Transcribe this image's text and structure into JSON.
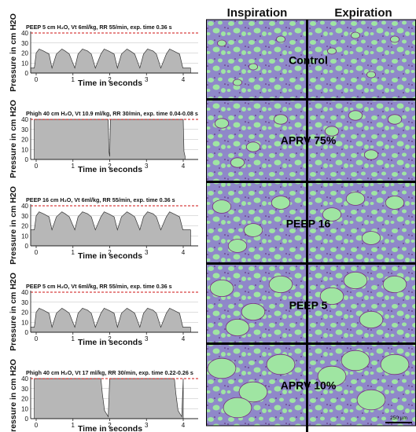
{
  "columns": {
    "inspiration": "Inspiration",
    "expiration": "Expiration"
  },
  "histology_rows": [
    {
      "label": "Control"
    },
    {
      "label": "APRV 75%"
    },
    {
      "label": "PEEP 16"
    },
    {
      "label": "PEEP 5"
    },
    {
      "label": "APRV 10%"
    }
  ],
  "scale_bar": "250 µm",
  "colors": {
    "waveform_fill": "#b7b7b7",
    "max_line": "#cc1111",
    "tissue_bg": "#8f88c9",
    "alveoli": "#9fe5a2",
    "septa": "#7a2b82",
    "divider": "#000000"
  },
  "chart_data": [
    {
      "type": "area",
      "title": "PEEP 5 cm H₂O, Vt 6ml/kg, RR 55/min, exp. time 0.36 s",
      "xlabel": "Time in seconds",
      "ylabel": "Pressure in cm H2O",
      "xlim": [
        0,
        4
      ],
      "ylim": [
        0,
        40
      ],
      "xticks": [
        0,
        1,
        2,
        3,
        4
      ],
      "yticks": [
        0,
        10,
        20,
        30,
        40
      ],
      "max_line": 40,
      "x": [
        -0.2,
        -0.05,
        0,
        0.08,
        0.2,
        0.35,
        0.43,
        0.55,
        0.7,
        0.79,
        0.9,
        1.05,
        1.14,
        1.26,
        1.4,
        1.5,
        1.61,
        1.76,
        1.85,
        1.97,
        2.12,
        2.21,
        2.32,
        2.47,
        2.56,
        2.68,
        2.82,
        2.92,
        3.03,
        3.18,
        3.27,
        3.39,
        3.54,
        3.63,
        3.74,
        3.9,
        3.99,
        4.2
      ],
      "values": [
        5,
        5,
        20,
        24,
        22,
        19,
        5,
        19,
        24,
        22,
        19,
        5,
        19,
        24,
        22,
        19,
        5,
        19,
        24,
        22,
        19,
        5,
        19,
        24,
        22,
        19,
        5,
        19,
        24,
        22,
        19,
        5,
        19,
        24,
        22,
        19,
        5,
        5
      ]
    },
    {
      "type": "area",
      "title": "Phigh 40 cm H₂O, Vt 10.9 ml/kg, RR 30/min, exp. time 0.04-0.08 s",
      "xlabel": "Time in seconds",
      "ylabel": "Pressure in cm H2O",
      "xlim": [
        0,
        4
      ],
      "ylim": [
        0,
        40
      ],
      "xticks": [
        0,
        1,
        2,
        3,
        4
      ],
      "yticks": [
        0,
        10,
        20,
        30,
        40
      ],
      "max_line": 40,
      "x": [
        -0.05,
        1.96,
        1.98,
        2.0,
        2.02,
        4.0,
        4.02,
        4.05
      ],
      "values": [
        40,
        40,
        8,
        3,
        40,
        40,
        8,
        3
      ]
    },
    {
      "type": "area",
      "title": "PEEP 16 cm H₂O, Vt 6ml/kg, RR 55/min, exp. time 0.36 s",
      "xlabel": "Time in seconds",
      "ylabel": "Pressure in cm H2O",
      "xlim": [
        0,
        4
      ],
      "ylim": [
        0,
        40
      ],
      "xticks": [
        0,
        1,
        2,
        3,
        4
      ],
      "yticks": [
        0,
        10,
        20,
        30,
        40
      ],
      "max_line": 40,
      "x": [
        -0.2,
        -0.05,
        0,
        0.08,
        0.2,
        0.35,
        0.43,
        0.55,
        0.7,
        0.79,
        0.9,
        1.05,
        1.14,
        1.26,
        1.4,
        1.5,
        1.61,
        1.76,
        1.85,
        1.97,
        2.12,
        2.21,
        2.32,
        2.47,
        2.56,
        2.68,
        2.82,
        2.92,
        3.03,
        3.18,
        3.27,
        3.39,
        3.54,
        3.63,
        3.74,
        3.9,
        3.99,
        4.2
      ],
      "values": [
        16,
        16,
        30,
        34,
        32,
        29,
        16,
        29,
        34,
        32,
        29,
        16,
        29,
        34,
        32,
        29,
        16,
        29,
        34,
        32,
        29,
        16,
        29,
        34,
        32,
        29,
        16,
        29,
        34,
        32,
        29,
        16,
        29,
        34,
        32,
        29,
        16,
        16
      ]
    },
    {
      "type": "area",
      "title": "PEEP 5 cm H₂O, Vt 6ml/kg, RR 55/min, exp. time 0.36 s",
      "xlabel": "Time in seconds",
      "ylabel": "Pressure in cm H2O",
      "xlim": [
        0,
        4
      ],
      "ylim": [
        0,
        40
      ],
      "xticks": [
        0,
        1,
        2,
        3,
        4
      ],
      "yticks": [
        0,
        10,
        20,
        30,
        40
      ],
      "max_line": 40,
      "x": [
        -0.2,
        -0.05,
        0,
        0.08,
        0.2,
        0.35,
        0.43,
        0.55,
        0.7,
        0.79,
        0.9,
        1.05,
        1.14,
        1.26,
        1.4,
        1.5,
        1.61,
        1.76,
        1.85,
        1.97,
        2.12,
        2.21,
        2.32,
        2.47,
        2.56,
        2.68,
        2.82,
        2.92,
        3.03,
        3.18,
        3.27,
        3.39,
        3.54,
        3.63,
        3.74,
        3.9,
        3.99,
        4.2
      ],
      "values": [
        5,
        5,
        20,
        24,
        22,
        19,
        5,
        19,
        24,
        22,
        19,
        5,
        19,
        24,
        22,
        19,
        5,
        19,
        24,
        22,
        19,
        5,
        19,
        24,
        22,
        19,
        5,
        19,
        24,
        22,
        19,
        5,
        19,
        24,
        22,
        19,
        5,
        5
      ]
    },
    {
      "type": "area",
      "title": "Phigh 40 cm H₂O, Vt 17 ml/kg, RR 30/min, exp. time 0.22-0.26 s",
      "xlabel": "Time in seconds",
      "ylabel": "Pressure in cm H2O",
      "xlim": [
        0,
        4
      ],
      "ylim": [
        0,
        40
      ],
      "xticks": [
        0,
        1,
        2,
        3,
        4
      ],
      "yticks": [
        0,
        10,
        20,
        30,
        40
      ],
      "max_line": 40,
      "x": [
        -0.05,
        1.76,
        1.8,
        1.86,
        1.96,
        2.0,
        3.76,
        3.8,
        3.86,
        3.96,
        4.0
      ],
      "values": [
        40,
        40,
        25,
        8,
        2,
        40,
        40,
        25,
        8,
        2,
        40
      ]
    }
  ]
}
